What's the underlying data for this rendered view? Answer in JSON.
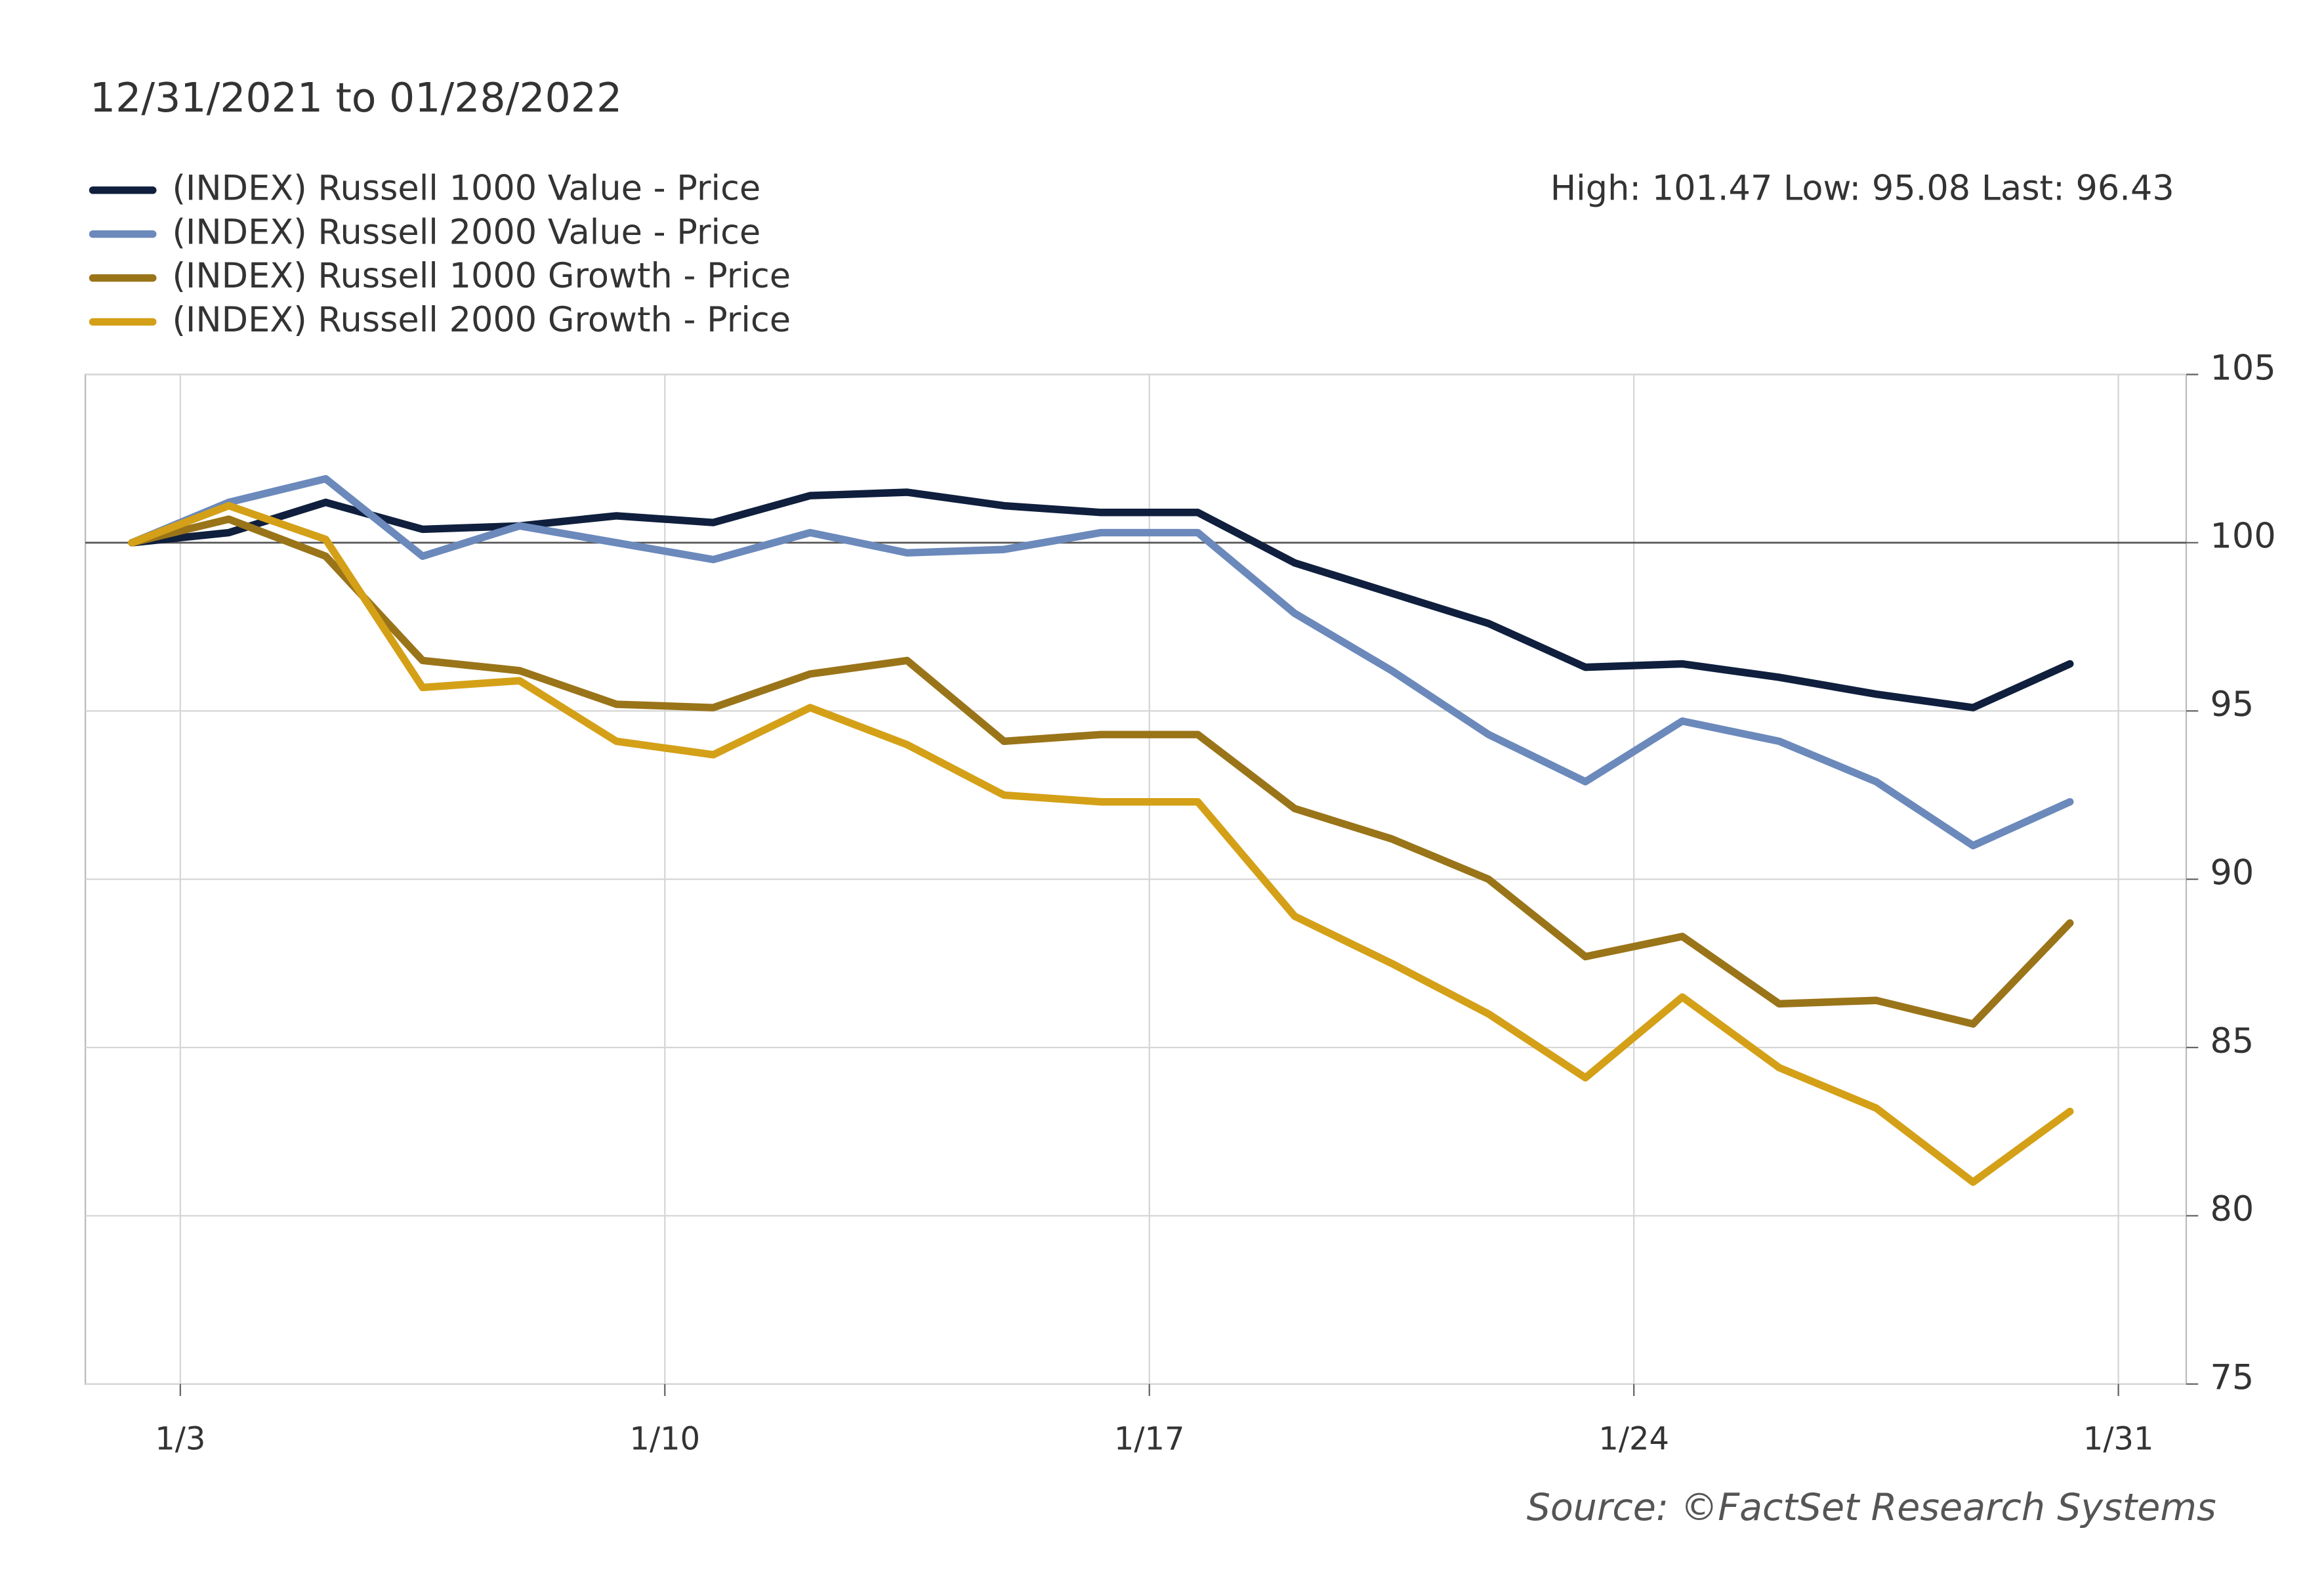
{
  "chart_data": {
    "type": "line",
    "subtitle": "12/31/2021 to 01/28/2022",
    "annotation": "High: 101.47 Low: 95.08 Last: 96.43",
    "source": "Source: ©FactSet Research Systems",
    "x": [
      0,
      1,
      2,
      3,
      4,
      5,
      6,
      7,
      8,
      9,
      10,
      11,
      12,
      13,
      14,
      15,
      16,
      17,
      18,
      19,
      20
    ],
    "xlim": [
      -0.48,
      21.2
    ],
    "xticks": [
      {
        "value": 0.5,
        "label": "1/3"
      },
      {
        "value": 5.5,
        "label": "1/10"
      },
      {
        "value": 10.5,
        "label": "1/17"
      },
      {
        "value": 15.5,
        "label": "1/24"
      },
      {
        "value": 20.5,
        "label": "1/31"
      }
    ],
    "ylim": [
      75,
      105
    ],
    "yticks": [
      75,
      80,
      85,
      90,
      95,
      100,
      105
    ],
    "reference_line": 100,
    "grid": true,
    "legend": "top-left",
    "series": [
      {
        "name": "(INDEX) Russell 1000 Value - Price",
        "color": "#0f1f3d",
        "values": [
          100,
          100.3,
          101.2,
          100.4,
          100.5,
          100.8,
          100.6,
          101.4,
          101.5,
          101.1,
          100.9,
          100.9,
          99.4,
          98.5,
          97.6,
          96.3,
          96.4,
          96.0,
          95.5,
          95.1,
          96.4
        ]
      },
      {
        "name": "(INDEX) Russell 2000 Value - Price",
        "color": "#6b89bb",
        "values": [
          100,
          101.2,
          101.9,
          99.6,
          100.5,
          100.0,
          99.5,
          100.3,
          99.7,
          99.8,
          100.3,
          100.3,
          97.9,
          96.2,
          94.3,
          92.9,
          94.7,
          94.1,
          92.9,
          91.0,
          92.3
        ]
      },
      {
        "name": "(INDEX) Russell 1000 Growth - Price",
        "color": "#9a7419",
        "values": [
          100,
          100.7,
          99.6,
          96.5,
          96.2,
          95.2,
          95.1,
          96.1,
          96.5,
          94.1,
          94.3,
          94.3,
          92.1,
          91.2,
          90.0,
          87.7,
          88.3,
          86.3,
          86.4,
          85.7,
          88.7
        ]
      },
      {
        "name": "(INDEX) Russell 2000 Growth - Price",
        "color": "#d4a017",
        "values": [
          100,
          101.1,
          100.1,
          95.7,
          95.9,
          94.1,
          93.7,
          95.1,
          94.0,
          92.5,
          92.3,
          92.3,
          88.9,
          87.5,
          86.0,
          84.1,
          86.5,
          84.4,
          83.2,
          81.0,
          83.1
        ]
      }
    ]
  }
}
